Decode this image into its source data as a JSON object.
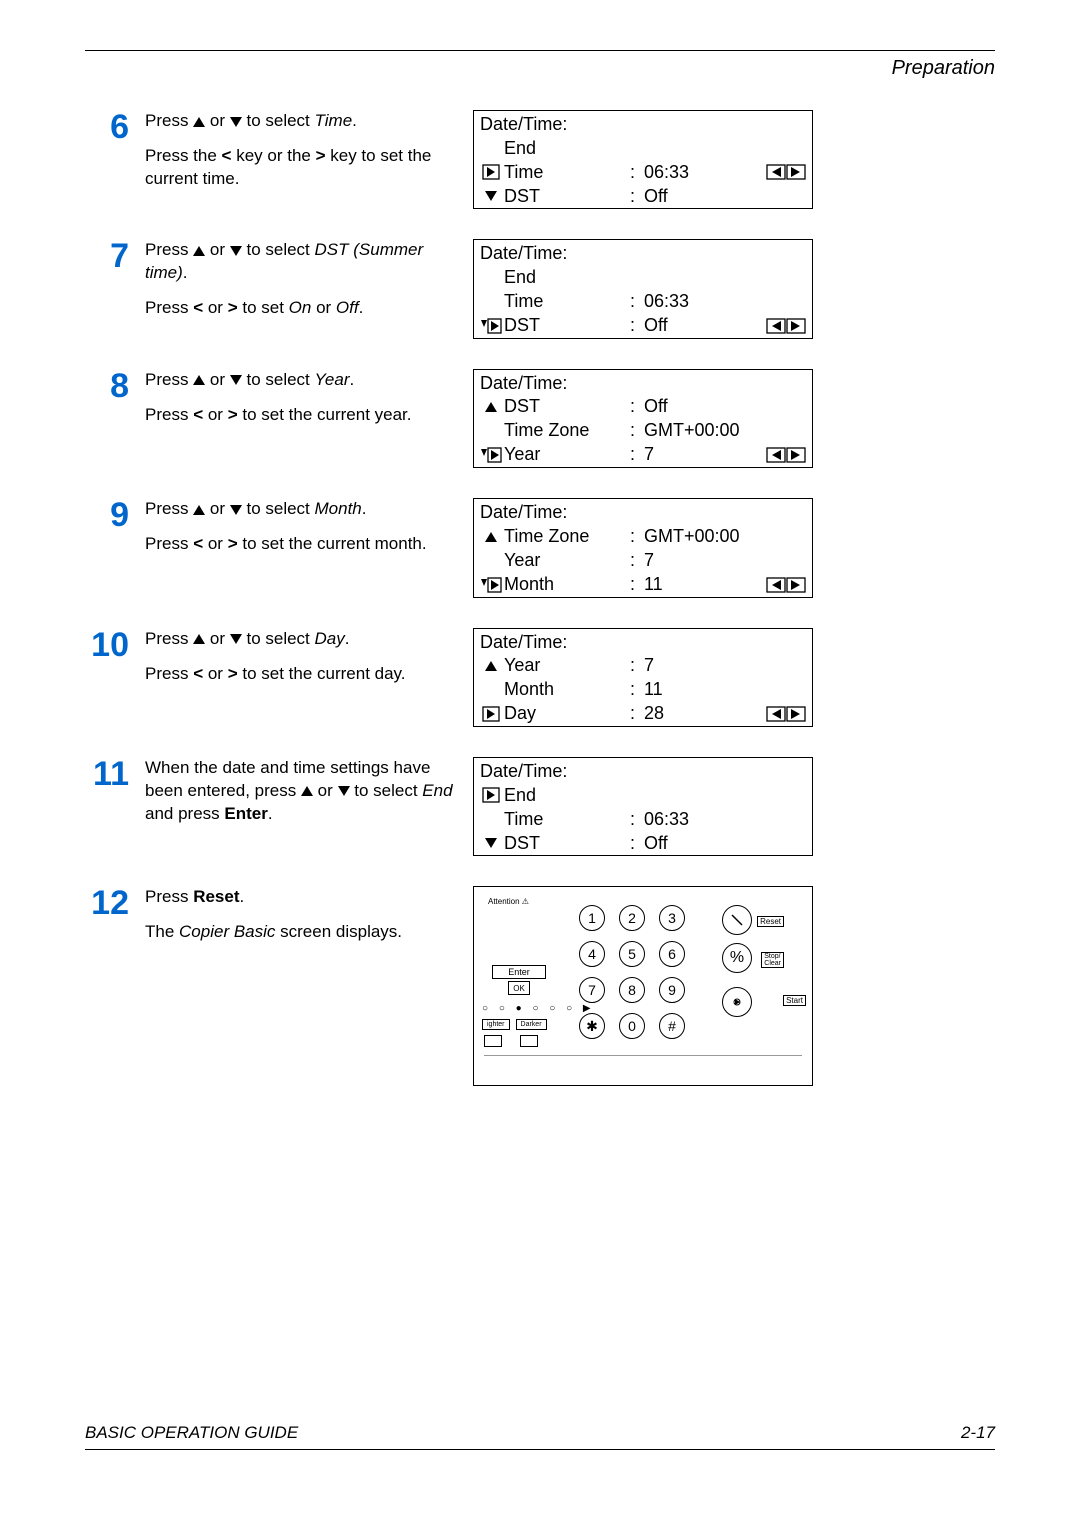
{
  "header": {
    "section": "Preparation"
  },
  "footer": {
    "left": "BASIC OPERATION GUIDE",
    "right": "2-17"
  },
  "steps": [
    {
      "num": "6",
      "lines": [
        {
          "segs": [
            {
              "t": "Press "
            },
            {
              "t": "▲",
              "cls": ""
            },
            {
              "t": " or "
            },
            {
              "t": "▼",
              "cls": ""
            },
            {
              "t": " to select "
            },
            {
              "t": "Time",
              "cls": "italic"
            },
            {
              "t": "."
            }
          ]
        },
        {
          "segs": [
            {
              "t": "Press the "
            },
            {
              "t": "<",
              "cls": "bold"
            },
            {
              "t": " key or the "
            },
            {
              "t": ">",
              "cls": "bold"
            },
            {
              "t": " key to set the current time."
            }
          ]
        }
      ],
      "lcd": {
        "title": "Date/Time:",
        "rows": [
          {
            "icon": "",
            "label": "End",
            "colon": "",
            "value": "",
            "arrows": false
          },
          {
            "icon": "right",
            "label": "Time",
            "colon": ":",
            "value": "06:33",
            "arrows": true
          },
          {
            "icon": "down",
            "label": "DST",
            "colon": ":",
            "value": "Off",
            "arrows": false
          }
        ]
      }
    },
    {
      "num": "7",
      "lines": [
        {
          "segs": [
            {
              "t": "Press "
            },
            {
              "t": "▲"
            },
            {
              "t": " or "
            },
            {
              "t": "▼"
            },
            {
              "t": " to select "
            },
            {
              "t": "DST (Summer time)",
              "cls": "italic"
            },
            {
              "t": "."
            }
          ]
        },
        {
          "segs": [
            {
              "t": "Press "
            },
            {
              "t": "<",
              "cls": "bold"
            },
            {
              "t": " or "
            },
            {
              "t": ">",
              "cls": "bold"
            },
            {
              "t": " to set "
            },
            {
              "t": "On",
              "cls": "italic"
            },
            {
              "t": " or "
            },
            {
              "t": "Off",
              "cls": "italic"
            },
            {
              "t": "."
            }
          ]
        }
      ],
      "lcd": {
        "title": "Date/Time:",
        "rows": [
          {
            "icon": "",
            "label": "End",
            "colon": "",
            "value": "",
            "arrows": false
          },
          {
            "icon": "",
            "label": "Time",
            "colon": ":",
            "value": "06:33",
            "arrows": false
          },
          {
            "icon": "downright",
            "label": "DST",
            "colon": ":",
            "value": "Off",
            "arrows": true
          }
        ]
      }
    },
    {
      "num": "8",
      "lines": [
        {
          "segs": [
            {
              "t": "Press "
            },
            {
              "t": "▲"
            },
            {
              "t": " or "
            },
            {
              "t": "▼"
            },
            {
              "t": " to select "
            },
            {
              "t": "Year",
              "cls": "italic"
            },
            {
              "t": "."
            }
          ]
        },
        {
          "segs": [
            {
              "t": "Press "
            },
            {
              "t": "<",
              "cls": "bold"
            },
            {
              "t": " or "
            },
            {
              "t": ">",
              "cls": "bold"
            },
            {
              "t": " to set the current year."
            }
          ]
        }
      ],
      "lcd": {
        "title": "Date/Time:",
        "rows": [
          {
            "icon": "up",
            "label": "DST",
            "colon": ":",
            "value": "Off",
            "arrows": false
          },
          {
            "icon": "",
            "label": "Time Zone",
            "colon": ":",
            "value": "GMT+00:00",
            "arrows": false
          },
          {
            "icon": "downright",
            "label": "Year",
            "colon": ":",
            "value": "7",
            "arrows": true
          }
        ]
      }
    },
    {
      "num": "9",
      "lines": [
        {
          "segs": [
            {
              "t": "Press "
            },
            {
              "t": "▲"
            },
            {
              "t": " or "
            },
            {
              "t": "▼"
            },
            {
              "t": " to select "
            },
            {
              "t": "Month",
              "cls": "italic"
            },
            {
              "t": "."
            }
          ]
        },
        {
          "segs": [
            {
              "t": "Press "
            },
            {
              "t": "<",
              "cls": "bold"
            },
            {
              "t": " or "
            },
            {
              "t": ">",
              "cls": "bold"
            },
            {
              "t": " to set the current month."
            }
          ]
        }
      ],
      "lcd": {
        "title": "Date/Time:",
        "rows": [
          {
            "icon": "up",
            "label": "Time Zone",
            "colon": ":",
            "value": "GMT+00:00",
            "arrows": false
          },
          {
            "icon": "",
            "label": "Year",
            "colon": ":",
            "value": "7",
            "arrows": false
          },
          {
            "icon": "downright",
            "label": "Month",
            "colon": ":",
            "value": "11",
            "arrows": true
          }
        ]
      }
    },
    {
      "num": "10",
      "lines": [
        {
          "segs": [
            {
              "t": "Press "
            },
            {
              "t": "▲"
            },
            {
              "t": " or "
            },
            {
              "t": "▼"
            },
            {
              "t": " to select "
            },
            {
              "t": "Day",
              "cls": "italic"
            },
            {
              "t": "."
            }
          ]
        },
        {
          "segs": [
            {
              "t": "Press "
            },
            {
              "t": "<",
              "cls": "bold"
            },
            {
              "t": " or "
            },
            {
              "t": ">",
              "cls": "bold"
            },
            {
              "t": " to set the current day."
            }
          ]
        }
      ],
      "lcd": {
        "title": "Date/Time:",
        "rows": [
          {
            "icon": "up",
            "label": "Year",
            "colon": ":",
            "value": "7",
            "arrows": false
          },
          {
            "icon": "",
            "label": "Month",
            "colon": ":",
            "value": "11",
            "arrows": false
          },
          {
            "icon": "right",
            "label": "Day",
            "colon": ":",
            "value": "28",
            "arrows": true
          }
        ]
      }
    },
    {
      "num": "11",
      "lines": [
        {
          "segs": [
            {
              "t": "When the date and time settings have been entered, press "
            },
            {
              "t": "▲"
            },
            {
              "t": " or "
            },
            {
              "t": "▼"
            },
            {
              "t": " to select "
            },
            {
              "t": "End",
              "cls": "italic"
            },
            {
              "t": " and press "
            },
            {
              "t": "Enter",
              "cls": "bold"
            },
            {
              "t": "."
            }
          ]
        }
      ],
      "lcd": {
        "title": "Date/Time:",
        "rows": [
          {
            "icon": "right",
            "label": "End",
            "colon": "",
            "value": "",
            "arrows": false
          },
          {
            "icon": "",
            "label": "Time",
            "colon": ":",
            "value": "06:33",
            "arrows": false
          },
          {
            "icon": "down",
            "label": "DST",
            "colon": ":",
            "value": "Off",
            "arrows": false
          }
        ]
      }
    },
    {
      "num": "12",
      "lines": [
        {
          "segs": [
            {
              "t": "Press "
            },
            {
              "t": "Reset",
              "cls": "bold"
            },
            {
              "t": "."
            }
          ]
        },
        {
          "segs": [
            {
              "t": "The "
            },
            {
              "t": "Copier Basic",
              "cls": "italic"
            },
            {
              "t": " screen displays."
            }
          ]
        }
      ],
      "keypad": true
    }
  ],
  "keypad": {
    "attention": "Attention",
    "enter": "Enter",
    "ok": "OK",
    "dots": "○ ○ ● ○ ○ ○ ▶",
    "lighter": "ighter",
    "darker": "Darker",
    "reset": "Reset",
    "stop": "Stop/\nClear",
    "start": "Start",
    "percent": "%",
    "keys": [
      [
        "1",
        "2",
        "3"
      ],
      [
        "4",
        "5",
        "6"
      ],
      [
        "7",
        "8",
        "9"
      ],
      [
        "✱",
        "0",
        "#"
      ]
    ]
  }
}
